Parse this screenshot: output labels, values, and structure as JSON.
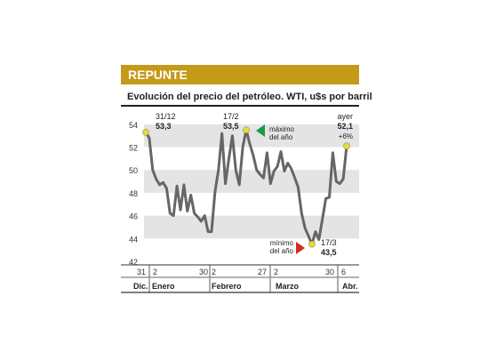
{
  "header": {
    "title": "REPUNTE"
  },
  "chart_data": {
    "type": "line",
    "title": "Evolución del precio del petróleo. WTI, u$s por barril",
    "ylim": [
      42,
      55
    ],
    "yticks": [
      42,
      44,
      46,
      48,
      50,
      52,
      54
    ],
    "grid": "alternating horizontal bands",
    "day_ticks": [
      "31",
      "2",
      "30",
      "2",
      "27",
      "2",
      "30",
      "6"
    ],
    "month_labels": [
      "Dic.",
      "Enero",
      "Febrero",
      "Marzo",
      "Abr."
    ],
    "series": [
      {
        "color": "#666666",
        "values": [
          53.3,
          52.8,
          50.0,
          49.2,
          48.7,
          48.9,
          48.4,
          46.2,
          46.0,
          48.6,
          46.5,
          48.7,
          46.4,
          47.8,
          46.2,
          45.9,
          45.5,
          46.0,
          44.6,
          44.6,
          48.1,
          50.0,
          53.2,
          48.8,
          51.0,
          53.0,
          50.0,
          48.7,
          52.0,
          53.5,
          52.3,
          51.3,
          50.0,
          49.6,
          49.3,
          51.5,
          48.8,
          49.9,
          50.3,
          51.6,
          49.9,
          50.6,
          50.1,
          49.3,
          48.5,
          46.2,
          44.9,
          44.2,
          43.5,
          44.6,
          43.9,
          45.7,
          47.5,
          47.6,
          51.5,
          49.0,
          48.8,
          49.2,
          52.1
        ]
      }
    ],
    "annotations": [
      {
        "date": "31/12",
        "value": "53,3"
      },
      {
        "date": "17/2",
        "value": "53,5",
        "note_line1": "máximo",
        "note_line2": "del año"
      },
      {
        "date": "17/3",
        "value": "43,5",
        "note_line1": "mínimo",
        "note_line2": "del año"
      },
      {
        "date": "ayer",
        "value": "52,1",
        "change": "+6%"
      }
    ],
    "colors": {
      "accent": "#c49a18",
      "line": "#666666",
      "point": "#e6df2a",
      "band": "#e4e4e4",
      "up": "#1a9a4a",
      "down": "#d62a22"
    }
  }
}
